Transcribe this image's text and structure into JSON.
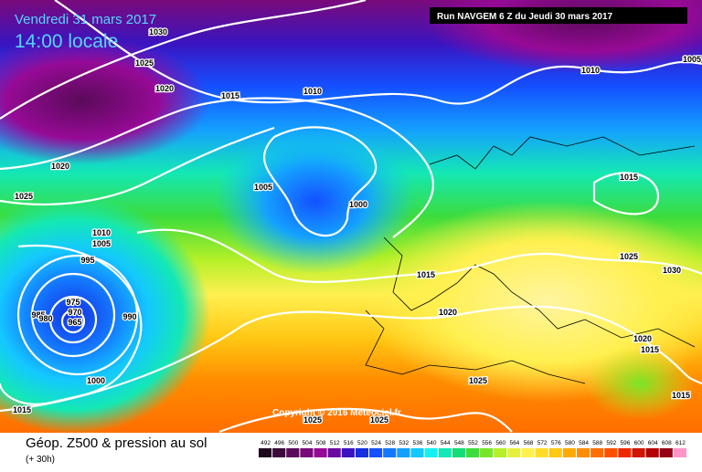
{
  "header": {
    "date": "Vendredi 31 mars 2017",
    "time": "14:00 locale",
    "run": "Run NAVGEM 6 Z du Jeudi 30 mars 2017"
  },
  "copyright": "Copyright © 2016 Meteociel.fr",
  "footer": {
    "title": "Géop. Z500 & pression au sol",
    "subtitle": "(+ 30h)"
  },
  "isobar_labels": [
    "1030",
    "1025",
    "1020",
    "1015",
    "1010",
    "1010",
    "1005",
    "1020",
    "1025",
    "1005",
    "1000",
    "1015",
    "1010",
    "1005",
    "995",
    "975",
    "970",
    "965",
    "985",
    "980",
    "990",
    "1015",
    "1025",
    "1030",
    "1020",
    "1020",
    "1015",
    "1000",
    "1025",
    "1015",
    "1015",
    "1025",
    "1025"
  ],
  "legend": {
    "values": [
      492,
      496,
      500,
      504,
      508,
      512,
      516,
      520,
      524,
      528,
      532,
      536,
      540,
      544,
      548,
      552,
      556,
      560,
      564,
      568,
      572,
      576,
      580,
      584,
      588,
      592,
      596,
      600,
      604,
      608,
      612
    ],
    "colors": [
      "#1e0a1e",
      "#3a0a3a",
      "#5a0a5a",
      "#7a0a7a",
      "#960a96",
      "#6a0aa0",
      "#3a14c0",
      "#1430e0",
      "#1450ff",
      "#1478ff",
      "#14a0ff",
      "#14c8ff",
      "#14f0f0",
      "#14e8b4",
      "#14dc78",
      "#3cdc3c",
      "#78e628",
      "#b4f028",
      "#e6f03c",
      "#fff050",
      "#ffdc28",
      "#ffc814",
      "#ffaa00",
      "#ff8c00",
      "#ff6e00",
      "#ff5000",
      "#f02800",
      "#d21400",
      "#b40000",
      "#960014",
      "#ff96c8"
    ]
  }
}
